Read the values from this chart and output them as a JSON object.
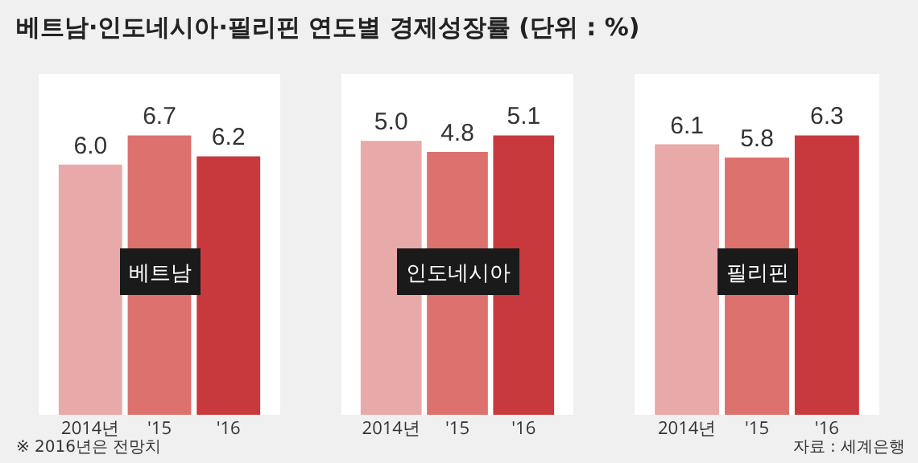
{
  "chart_data": [
    {
      "type": "bar",
      "title": "베트남",
      "categories": [
        "2014년",
        "'15",
        "'16"
      ],
      "values": [
        6.0,
        6.7,
        6.2
      ],
      "value_labels": [
        "6.0",
        "6.7",
        "6.2"
      ],
      "colors": [
        "#e8aaa9",
        "#dc716d",
        "#c8393e"
      ],
      "annotations": [
        "베트남·인도네시아·필리핀 연도별 경제성장률 (단위 : %)",
        "※ 2016년은 전망치"
      ]
    },
    {
      "type": "bar",
      "title": "인도네시아",
      "categories": [
        "2014년",
        "'15",
        "'16"
      ],
      "values": [
        5.0,
        4.8,
        5.1
      ],
      "value_labels": [
        "5.0",
        "4.8",
        "5.1"
      ],
      "colors": [
        "#e8aaa9",
        "#dc716d",
        "#c8393e"
      ]
    },
    {
      "type": "bar",
      "title": "필리핀",
      "categories": [
        "2014년",
        "'15",
        "'16"
      ],
      "values": [
        6.1,
        5.8,
        6.3
      ],
      "value_labels": [
        "6.1",
        "5.8",
        "6.3"
      ],
      "colors": [
        "#e8aaa9",
        "#dc716d",
        "#c8393e"
      ],
      "annotations": [
        "자료 : 세계은행"
      ]
    }
  ]
}
